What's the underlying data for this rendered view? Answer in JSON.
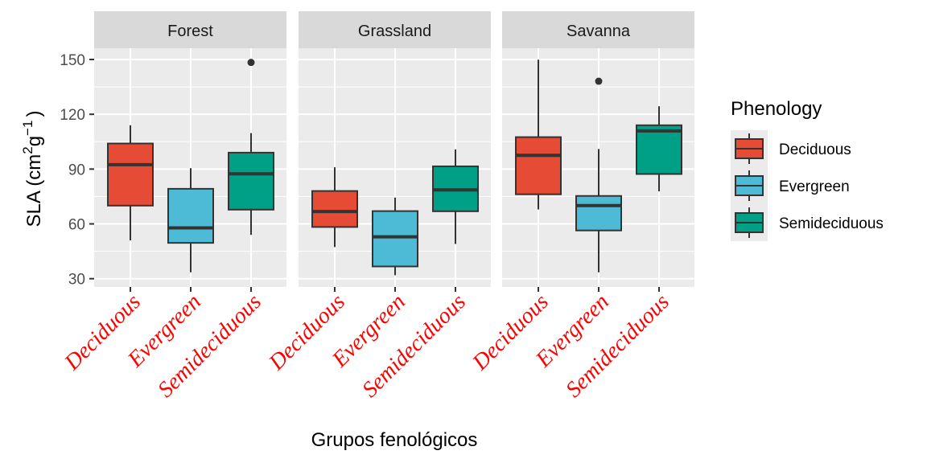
{
  "chart_data": {
    "type": "boxplot",
    "title": "",
    "xlabel": "Grupos fenológicos",
    "ylabel": "SLA (cm2g-1)",
    "ylabel_parts": {
      "main": "SLA (cm",
      "sup1": "2",
      "mid": "g",
      "sup2": "−1",
      "end": ")"
    },
    "ylim": [
      25,
      160
    ],
    "yticks": [
      30,
      60,
      90,
      120,
      150
    ],
    "grid": true,
    "facets": [
      "Forest",
      "Grassland",
      "Savanna"
    ],
    "categories": [
      "Deciduous",
      "Evergreen",
      "Semideciduous"
    ],
    "category_label_color": "#ff0000",
    "legend": {
      "title": "Phenology",
      "position": "right",
      "entries": [
        {
          "label": "Deciduous",
          "color": "#e64b35"
        },
        {
          "label": "Evergreen",
          "color": "#4dbbd5"
        },
        {
          "label": "Semideciduous",
          "color": "#00a087"
        }
      ]
    },
    "series": [
      {
        "facet": "Forest",
        "category": "Deciduous",
        "whisker_low": 51,
        "q1": 70,
        "median": 92.4,
        "q3": 104,
        "whisker_high": 114,
        "outliers": []
      },
      {
        "facet": "Forest",
        "category": "Evergreen",
        "whisker_low": 33.5,
        "q1": 49.6,
        "median": 57.8,
        "q3": 79.2,
        "whisker_high": 90.5,
        "outliers": []
      },
      {
        "facet": "Forest",
        "category": "Semideciduous",
        "whisker_low": 54,
        "q1": 67.8,
        "median": 87.4,
        "q3": 99,
        "whisker_high": 109.7,
        "outliers": [
          148.4
        ]
      },
      {
        "facet": "Grassland",
        "category": "Deciduous",
        "whisker_low": 47.3,
        "q1": 58.3,
        "median": 66.8,
        "q3": 78,
        "whisker_high": 91,
        "outliers": []
      },
      {
        "facet": "Grassland",
        "category": "Evergreen",
        "whisker_low": 31.9,
        "q1": 36.7,
        "median": 52.9,
        "q3": 67,
        "whisker_high": 74.4,
        "outliers": []
      },
      {
        "facet": "Grassland",
        "category": "Semideciduous",
        "whisker_low": 49,
        "q1": 66.9,
        "median": 78.6,
        "q3": 91.5,
        "whisker_high": 100.8,
        "outliers": []
      },
      {
        "facet": "Savanna",
        "category": "Deciduous",
        "whisker_low": 67.9,
        "q1": 76.2,
        "median": 97.5,
        "q3": 107.5,
        "whisker_high": 149.9,
        "outliers": []
      },
      {
        "facet": "Savanna",
        "category": "Evergreen",
        "whisker_low": 33.5,
        "q1": 56.4,
        "median": 70,
        "q3": 75.3,
        "whisker_high": 101,
        "outliers": [
          138.1
        ]
      },
      {
        "facet": "Savanna",
        "category": "Semideciduous",
        "whisker_low": 77.8,
        "q1": 87.3,
        "median": 110.9,
        "q3": 114,
        "whisker_high": 124.4,
        "outliers": []
      }
    ]
  }
}
